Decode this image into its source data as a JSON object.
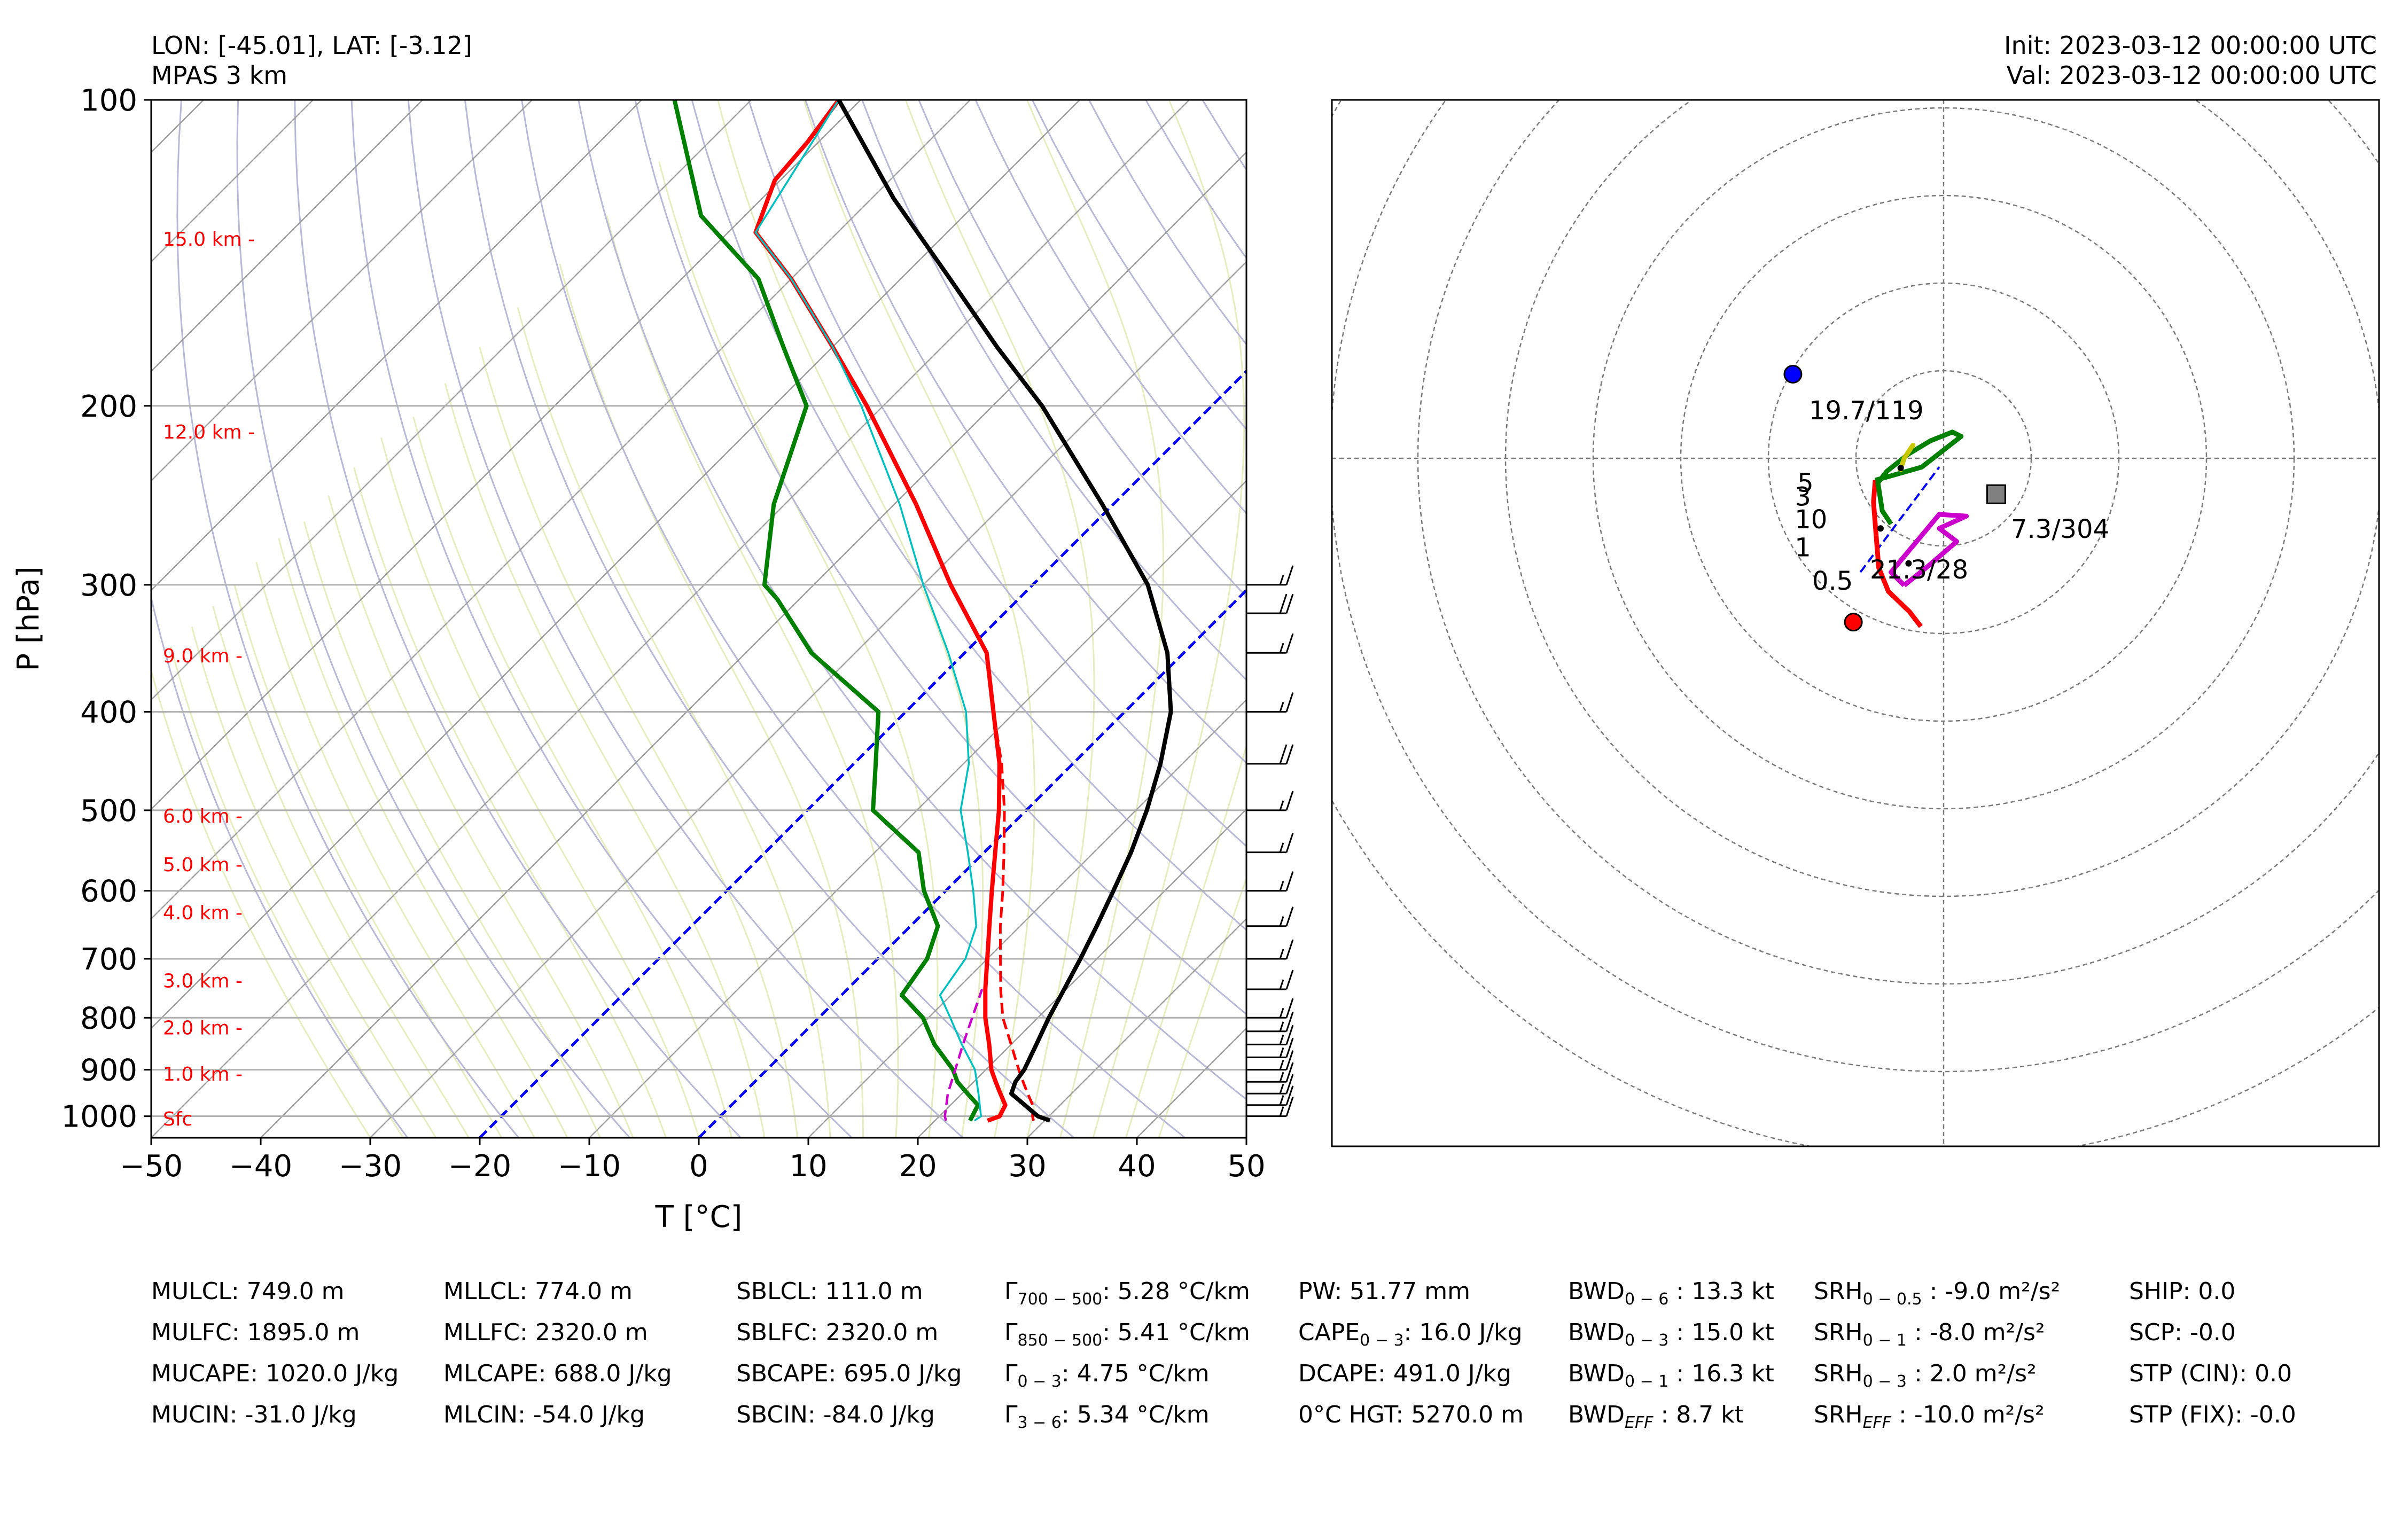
{
  "header": {
    "lonlat": "LON: [-45.01], LAT: [-3.12]",
    "model": "MPAS 3 km",
    "init": "Init: 2023-03-12 00:00:00 UTC",
    "valid": "Val: 2023-03-12 00:00:00 UTC"
  },
  "chart_data": [
    {
      "type": "skew-t",
      "ylabel": "P [hPa]",
      "xlabel": "T [°C]",
      "xlim": [
        -50,
        50
      ],
      "ylim": [
        1050,
        100
      ],
      "y_scale": "log",
      "skew_deg": 45,
      "grid": true,
      "p_ticks": [
        100,
        200,
        300,
        400,
        500,
        600,
        700,
        800,
        900,
        1000
      ],
      "t_ticks": [
        -50,
        -40,
        -30,
        -20,
        -10,
        0,
        10,
        20,
        30,
        40,
        50
      ],
      "t_tick_labels": [
        "−50",
        "−40",
        "−30",
        "−20",
        "−10",
        "0",
        "10",
        "20",
        "30",
        "40",
        "50"
      ],
      "height_labels": [
        {
          "text": "15.0 km -",
          "p": 137
        },
        {
          "text": "12.0 km -",
          "p": 212
        },
        {
          "text": "9.0 km -",
          "p": 352
        },
        {
          "text": "6.0 km -",
          "p": 506
        },
        {
          "text": "5.0 km -",
          "p": 565
        },
        {
          "text": "4.0 km -",
          "p": 630
        },
        {
          "text": "3.0 km -",
          "p": 735
        },
        {
          "text": "2.0 km -",
          "p": 818
        },
        {
          "text": "1.0 km -",
          "p": 908
        },
        {
          "text": "Sfc",
          "p": 1005
        }
      ],
      "series": [
        {
          "role": "temperature",
          "color": "#ff0000",
          "style": "solid",
          "points": [
            [
              1010,
              24.8
            ],
            [
              1000,
              25.5
            ],
            [
              975,
              25.0
            ],
            [
              950,
              23.5
            ],
            [
              925,
              22.0
            ],
            [
              900,
              20.5
            ],
            [
              850,
              18.0
            ],
            [
              800,
              15.2
            ],
            [
              750,
              12.6
            ],
            [
              700,
              10.0
            ],
            [
              650,
              7.2
            ],
            [
              600,
              4.2
            ],
            [
              550,
              1.0
            ],
            [
              500,
              -2.5
            ],
            [
              450,
              -6.7
            ],
            [
              400,
              -12.0
            ],
            [
              350,
              -18.0
            ],
            [
              300,
              -27.5
            ],
            [
              250,
              -38.0
            ],
            [
              200,
              -51.5
            ],
            [
              175,
              -60.0
            ],
            [
              150,
              -70.0
            ],
            [
              135,
              -77.5
            ],
            [
              120,
              -80.5
            ],
            [
              110,
              -81.0
            ],
            [
              100,
              -82.0
            ]
          ]
        },
        {
          "role": "virtual temperature",
          "color": "#ff0000",
          "style": "dashed",
          "points": [
            [
              1010,
              29.0
            ],
            [
              1000,
              28.5
            ],
            [
              975,
              27.5
            ],
            [
              950,
              26.0
            ],
            [
              925,
              24.5
            ],
            [
              900,
              23.0
            ],
            [
              850,
              20.0
            ],
            [
              800,
              16.8
            ],
            [
              750,
              14.0
            ],
            [
              700,
              11.2
            ],
            [
              650,
              8.2
            ],
            [
              600,
              5.2
            ],
            [
              550,
              1.8
            ],
            [
              500,
              -2.0
            ],
            [
              450,
              -6.5
            ],
            [
              400,
              -12.0
            ]
          ]
        },
        {
          "role": "dewpoint",
          "color": "#008000",
          "style": "solid",
          "points": [
            [
              1010,
              23.2
            ],
            [
              1000,
              23.0
            ],
            [
              975,
              22.5
            ],
            [
              950,
              20.5
            ],
            [
              925,
              18.5
            ],
            [
              900,
              17.0
            ],
            [
              850,
              13.0
            ],
            [
              800,
              9.5
            ],
            [
              760,
              5.5
            ],
            [
              700,
              4.5
            ],
            [
              650,
              2.5
            ],
            [
              600,
              -2.0
            ],
            [
              550,
              -6.0
            ],
            [
              500,
              -14.0
            ],
            [
              450,
              -18.0
            ],
            [
              400,
              -22.5
            ],
            [
              350,
              -34.0
            ],
            [
              310,
              -42.0
            ],
            [
              300,
              -44.5
            ],
            [
              250,
              -51.0
            ],
            [
              200,
              -57.0
            ],
            [
              175,
              -64.5
            ],
            [
              150,
              -73.0
            ],
            [
              130,
              -84.0
            ],
            [
              100,
              -97.0
            ]
          ]
        },
        {
          "role": "wet-bulb temperature",
          "color": "#00c0c0",
          "style": "solid",
          "points": [
            [
              1010,
              23.6
            ],
            [
              1000,
              23.8
            ],
            [
              950,
              21.5
            ],
            [
              900,
              19.0
            ],
            [
              850,
              15.5
            ],
            [
              800,
              12.0
            ],
            [
              760,
              9.0
            ],
            [
              700,
              8.0
            ],
            [
              650,
              6.0
            ],
            [
              600,
              2.5
            ],
            [
              550,
              -1.5
            ],
            [
              500,
              -6.0
            ],
            [
              450,
              -9.5
            ],
            [
              400,
              -14.5
            ],
            [
              350,
              -21.5
            ],
            [
              300,
              -30.0
            ],
            [
              250,
              -39.5
            ],
            [
              200,
              -52.0
            ],
            [
              175,
              -60.0
            ],
            [
              150,
              -70.0
            ],
            [
              135,
              -77.5
            ],
            [
              100,
              -82.0
            ]
          ]
        },
        {
          "role": "surface-based parcel",
          "color": "#000000",
          "style": "solid",
          "points": [
            [
              1010,
              30.5
            ],
            [
              1000,
              29.0
            ],
            [
              950,
              24.5
            ],
            [
              925,
              23.8
            ],
            [
              900,
              23.5
            ],
            [
              850,
              22.3
            ],
            [
              800,
              21.0
            ],
            [
              750,
              19.8
            ],
            [
              700,
              18.5
            ],
            [
              650,
              17.0
            ],
            [
              600,
              15.3
            ],
            [
              550,
              13.4
            ],
            [
              500,
              11.0
            ],
            [
              450,
              8.0
            ],
            [
              400,
              4.2
            ],
            [
              350,
              -1.5
            ],
            [
              300,
              -9.5
            ],
            [
              250,
              -21.0
            ],
            [
              200,
              -35.5
            ],
            [
              175,
              -45.0
            ],
            [
              150,
              -55.5
            ],
            [
              125,
              -68.0
            ],
            [
              100,
              -82.0
            ]
          ]
        },
        {
          "role": "downdraft parcel",
          "color": "#cc00cc",
          "style": "dashed",
          "points": [
            [
              1010,
              21.0
            ],
            [
              1000,
              20.5
            ],
            [
              950,
              18.7
            ],
            [
              900,
              17.2
            ],
            [
              850,
              15.6
            ],
            [
              800,
              14.0
            ],
            [
              750,
              12.3
            ]
          ]
        }
      ],
      "reference_lines": {
        "dry_adiabats_color": "#b8b8d8",
        "moist_adiabats_color": "#e8edbf",
        "isotherms_color": "#9e9e9e",
        "zero_and_minus20_isotherms_color": "#0000ff"
      },
      "wind_barbs": [
        {
          "p": 1000,
          "speed_kt": 16
        },
        {
          "p": 975,
          "speed_kt": 16
        },
        {
          "p": 950,
          "speed_kt": 17
        },
        {
          "p": 925,
          "speed_kt": 17
        },
        {
          "p": 900,
          "speed_kt": 17
        },
        {
          "p": 875,
          "speed_kt": 16
        },
        {
          "p": 850,
          "speed_kt": 16
        },
        {
          "p": 825,
          "speed_kt": 15
        },
        {
          "p": 800,
          "speed_kt": 15
        },
        {
          "p": 750,
          "speed_kt": 15
        },
        {
          "p": 700,
          "speed_kt": 15
        },
        {
          "p": 650,
          "speed_kt": 15
        },
        {
          "p": 600,
          "speed_kt": 15
        },
        {
          "p": 550,
          "speed_kt": 15
        },
        {
          "p": 500,
          "speed_kt": 15
        },
        {
          "p": 450,
          "speed_kt": 20
        },
        {
          "p": 400,
          "speed_kt": 15
        },
        {
          "p": 350,
          "speed_kt": 15
        },
        {
          "p": 320,
          "speed_kt": 20
        },
        {
          "p": 300,
          "speed_kt": 15
        }
      ]
    },
    {
      "type": "hodograph",
      "rings_kt": [
        10,
        20,
        30,
        40,
        50,
        60,
        70,
        80
      ],
      "series": [
        {
          "name": "0-1 km",
          "color": "#ff0000",
          "points": [
            [
              -2.6,
              -19.2
            ],
            [
              -3.9,
              -17.5
            ],
            [
              -6.3,
              -15.2
            ],
            [
              -7.4,
              -12.5
            ],
            [
              -7.7,
              -8.8
            ]
          ]
        },
        {
          "name": "1-3 km",
          "color": "#ff0000",
          "points": [
            [
              -7.7,
              -8.8
            ],
            [
              -8.0,
              -5.0
            ],
            [
              -7.8,
              -2.5
            ]
          ]
        },
        {
          "name": "3-6 km",
          "color": "#008000",
          "points": [
            [
              -7.8,
              -2.5
            ],
            [
              -6.0,
              -2.0
            ],
            [
              -2.5,
              -1.0
            ],
            [
              2.0,
              2.5
            ],
            [
              1.0,
              3.0
            ],
            [
              -1.5,
              2.0
            ],
            [
              -4.0,
              0.5
            ],
            [
              -6.5,
              -1.5
            ],
            [
              -7.5,
              -2.8
            ],
            [
              -7.0,
              -6.0
            ],
            [
              -6.0,
              -7.5
            ]
          ]
        },
        {
          "name": "6-9 km",
          "color": "#c8c800",
          "points": [
            [
              -5.0,
              -1.5
            ],
            [
              -4.5,
              0.0
            ],
            [
              -3.5,
              1.5
            ],
            [
              -4.5,
              0.0
            ]
          ]
        },
        {
          "name": "storm-motion segment",
          "color": "#cc00cc",
          "points": [
            [
              -4.5,
              -14.5
            ],
            [
              -2.0,
              -12.5
            ],
            [
              1.5,
              -9.5
            ],
            [
              -0.5,
              -8.0
            ],
            [
              2.6,
              -6.6
            ],
            [
              -0.5,
              -6.4
            ],
            [
              -6.0,
              -13.0
            ],
            [
              -4.5,
              -14.5
            ]
          ]
        }
      ],
      "markers": [
        {
          "label": "19.7/119",
          "u": -17.2,
          "v": 9.6,
          "color": "#0000ff",
          "shape": "circle"
        },
        {
          "label": "21.3/28",
          "u": -10.3,
          "v": -18.7,
          "color": "#ff0000",
          "shape": "circle"
        },
        {
          "label": "7.3/304",
          "u": 6.0,
          "v": -4.1,
          "color": "#808080",
          "shape": "square"
        }
      ],
      "point_labels": [
        {
          "text": "0.5",
          "u": -15.0,
          "v": -15.0
        },
        {
          "text": "1",
          "u": -17.0,
          "v": -11.2
        },
        {
          "text": "3",
          "u": -17.0,
          "v": -5.4
        },
        {
          "text": "5",
          "u": -16.7,
          "v": -3.8
        },
        {
          "text": "10",
          "u": -17.0,
          "v": -8.0
        }
      ]
    }
  ],
  "indices": {
    "col1": [
      "MULCL: 749.0 m",
      "MULFC: 1895.0 m",
      "MUCAPE: 1020.0 J/kg",
      "MUCIN: -31.0 J/kg"
    ],
    "col2": [
      "MLLCL: 774.0 m",
      "MLLFC: 2320.0 m",
      "MLCAPE: 688.0 J/kg",
      "MLCIN: -54.0 J/kg"
    ],
    "col3": [
      "SBLCL: 111.0 m",
      "SBLFC: 2320.0 m",
      "SBCAPE: 695.0 J/kg",
      "SBCIN: -84.0 J/kg"
    ],
    "col4": [
      {
        "sym": "Γ",
        "sub": "700 − 500",
        "val": ": 5.28 °C/km"
      },
      {
        "sym": "Γ",
        "sub": "850 − 500",
        "val": ": 5.41 °C/km"
      },
      {
        "sym": "Γ",
        "sub": "0 − 3",
        "val": ": 4.75 °C/km"
      },
      {
        "sym": "Γ",
        "sub": "3 − 6",
        "val": ": 5.34 °C/km"
      }
    ],
    "col5": [
      {
        "sym": "PW",
        "sub": "",
        "val": ": 51.77 mm"
      },
      {
        "sym": "CAPE",
        "sub": "0 − 3",
        "val": ": 16.0 J/kg"
      },
      {
        "sym": "DCAPE",
        "sub": "",
        "val": ": 491.0 J/kg"
      },
      {
        "sym": "0°C HGT",
        "sub": "",
        "val": ": 5270.0 m"
      }
    ],
    "col6": [
      {
        "sym": "BWD",
        "sub": "0 − 6",
        "val": " : 13.3 kt"
      },
      {
        "sym": "BWD",
        "sub": "0 − 3",
        "val": " : 15.0 kt"
      },
      {
        "sym": "BWD",
        "sub": "0 − 1",
        "val": " : 16.3 kt"
      },
      {
        "sym": "BWD",
        "sub": "EFF",
        "val": " : 8.7 kt"
      }
    ],
    "col7": [
      {
        "sym": "SRH",
        "sub": "0 − 0.5",
        "val": " : -9.0 m²/s²"
      },
      {
        "sym": "SRH",
        "sub": "0 − 1",
        "val": " : -8.0 m²/s²"
      },
      {
        "sym": "SRH",
        "sub": "0 − 3",
        "val": " : 2.0 m²/s²"
      },
      {
        "sym": "SRH",
        "sub": "EFF",
        "val": " : -10.0 m²/s²"
      }
    ],
    "col8": [
      "SHIP: 0.0",
      "SCP: -0.0",
      "STP (CIN): 0.0",
      "STP (FIX): -0.0"
    ]
  }
}
